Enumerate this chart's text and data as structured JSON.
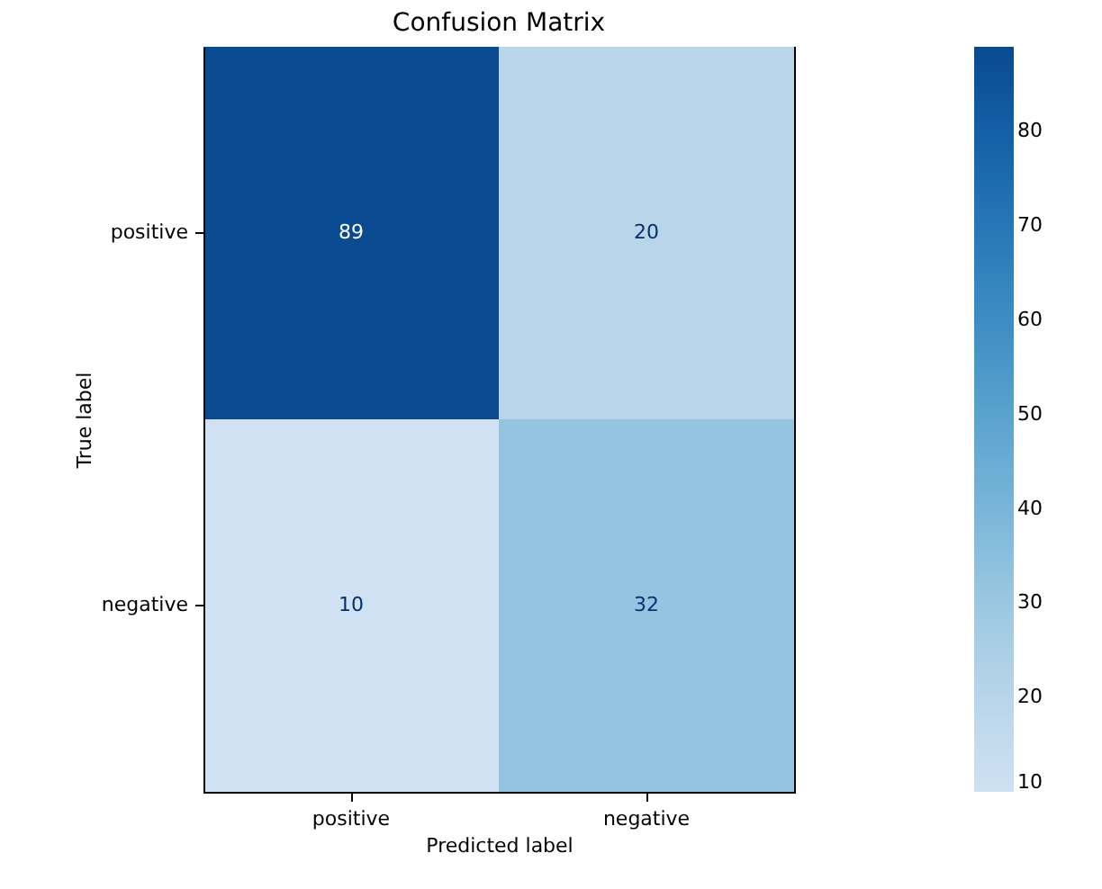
{
  "chart_data": {
    "type": "heatmap",
    "title": "Confusion Matrix",
    "xlabel": "Predicted label",
    "ylabel": "True label",
    "categories": [
      "positive",
      "negative"
    ],
    "y_categories": [
      "positive",
      "negative"
    ],
    "cells": [
      [
        89,
        20
      ],
      [
        10,
        32
      ]
    ],
    "data_labels": true,
    "clim": [
      10,
      89
    ],
    "cticks": [
      10,
      20,
      30,
      40,
      50,
      60,
      70,
      80
    ]
  }
}
